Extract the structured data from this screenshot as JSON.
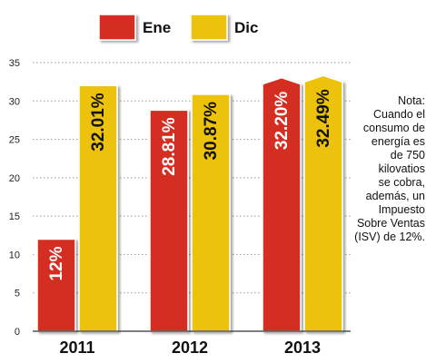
{
  "chart_data": {
    "type": "bar",
    "categories": [
      "2011",
      "2012",
      "2013"
    ],
    "series": [
      {
        "name": "Ene",
        "color": "#d42e24",
        "values": [
          12,
          28.81,
          32.2
        ],
        "labels": [
          "12%",
          "28.81%",
          "32.20%"
        ]
      },
      {
        "name": "Dic",
        "color": "#ecc20c",
        "values": [
          32.01,
          30.87,
          32.49
        ],
        "labels": [
          "32.01%",
          "30.87%",
          "32.49%"
        ]
      }
    ],
    "yticks": [
      "0",
      "5",
      "10",
      "15",
      "20",
      "25",
      "30",
      "35"
    ],
    "ylim": [
      0,
      35
    ],
    "grid": true,
    "legend_position": "top",
    "arrow_tops": [
      false,
      false,
      true
    ],
    "title": "",
    "xlabel": "",
    "ylabel": ""
  },
  "note": {
    "lines": [
      "Nota:",
      "Cuando el",
      "consumo de",
      "energía es",
      "de 750",
      "kilovatios",
      "se cobra,",
      "además, un",
      "Impuesto",
      "Sobre Ventas",
      "(ISV) de 12%."
    ]
  }
}
